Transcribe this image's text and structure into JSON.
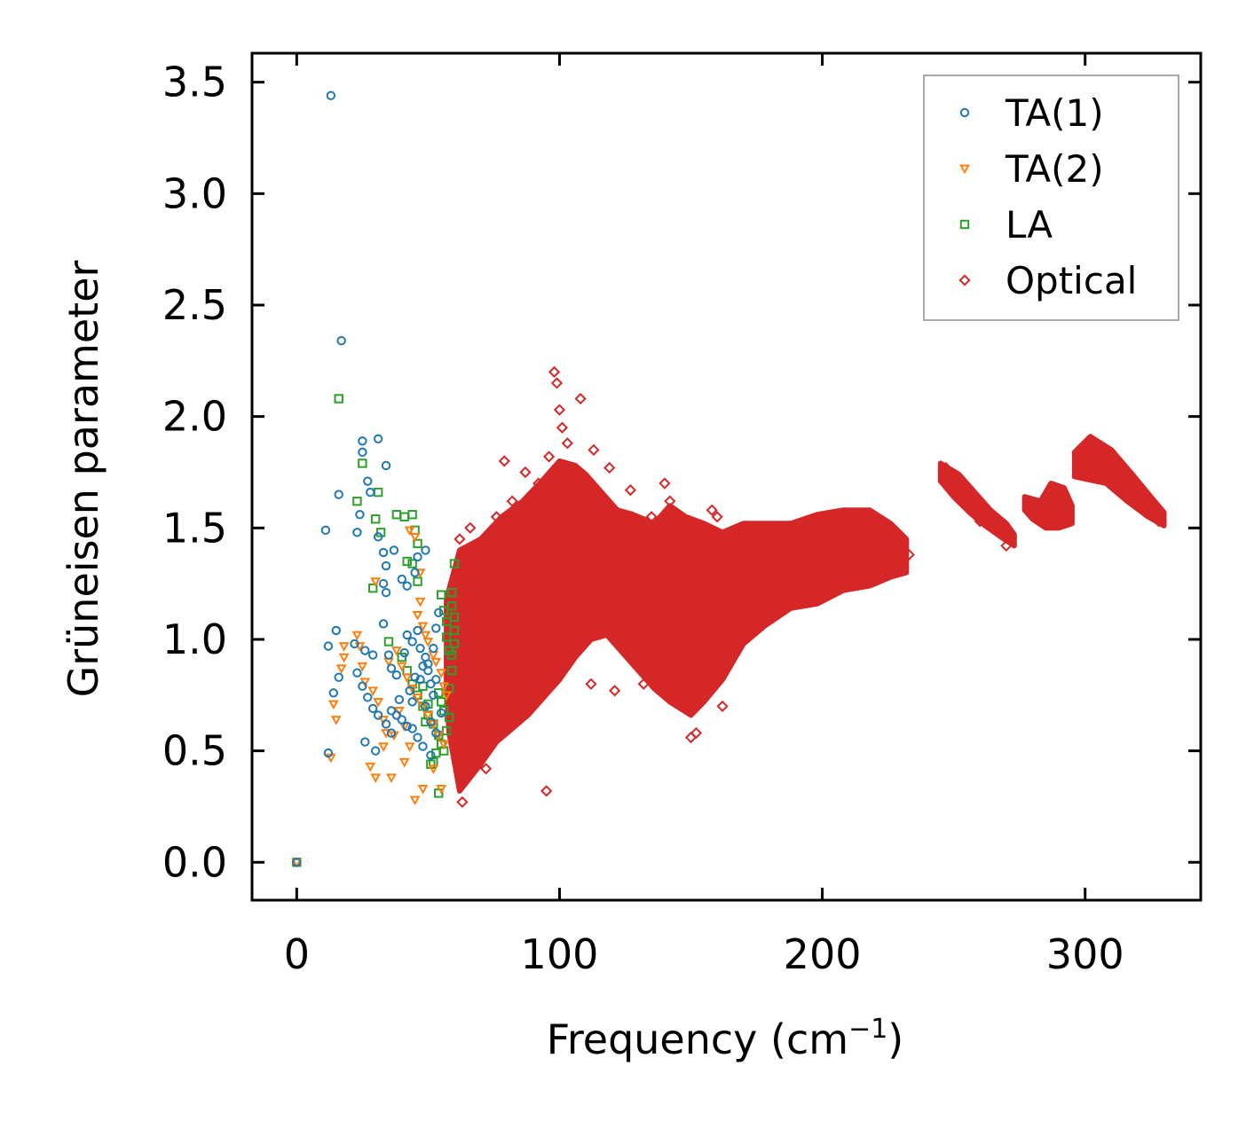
{
  "chart_data": {
    "type": "scatter",
    "title": "",
    "xlabel": "Frequency (cm",
    "xlabel_sup": "−1",
    "xlabel_close": ")",
    "ylabel": "Grüneisen parameter",
    "xlim": [
      -17,
      344
    ],
    "ylim": [
      -0.17,
      3.63
    ],
    "xticks": [
      0,
      100,
      200,
      300
    ],
    "xtick_labels": [
      "0",
      "100",
      "200",
      "300"
    ],
    "yticks": [
      0.0,
      0.5,
      1.0,
      1.5,
      2.0,
      2.5,
      3.0,
      3.5
    ],
    "ytick_labels": [
      "0.0",
      "0.5",
      "1.0",
      "1.5",
      "2.0",
      "2.5",
      "3.0",
      "3.5"
    ],
    "legend_position": "top-right",
    "series": [
      {
        "name": "TA(1)",
        "marker": "circle",
        "color": "#1f77b4",
        "points": [
          [
            0,
            0
          ],
          [
            13,
            3.44
          ],
          [
            17,
            2.34
          ],
          [
            16,
            1.65
          ],
          [
            11,
            1.49
          ],
          [
            25,
            1.89
          ],
          [
            31,
            1.9
          ],
          [
            25,
            1.84
          ],
          [
            34,
            1.78
          ],
          [
            27,
            1.71
          ],
          [
            28,
            1.66
          ],
          [
            24,
            1.56
          ],
          [
            23,
            1.48
          ],
          [
            31,
            1.46
          ],
          [
            33,
            1.39
          ],
          [
            37,
            1.4
          ],
          [
            34,
            1.33
          ],
          [
            40,
            1.27
          ],
          [
            42,
            1.24
          ],
          [
            45,
            1.3
          ],
          [
            46,
            1.37
          ],
          [
            49,
            1.4
          ],
          [
            33,
            1.25
          ],
          [
            34,
            1.21
          ],
          [
            15,
            1.04
          ],
          [
            12,
            0.97
          ],
          [
            22,
            0.98
          ],
          [
            26,
            0.95
          ],
          [
            29,
            0.93
          ],
          [
            33,
            1.07
          ],
          [
            35,
            0.93
          ],
          [
            36,
            0.87
          ],
          [
            38,
            0.84
          ],
          [
            41,
            0.94
          ],
          [
            42,
            1.02
          ],
          [
            44,
            0.99
          ],
          [
            46,
            1.04
          ],
          [
            47,
            0.96
          ],
          [
            49,
            0.92
          ],
          [
            50,
            0.86
          ],
          [
            51,
            0.8
          ],
          [
            52,
            0.75
          ],
          [
            53,
            0.82
          ],
          [
            16,
            0.83
          ],
          [
            14,
            0.76
          ],
          [
            23,
            0.85
          ],
          [
            25,
            0.79
          ],
          [
            27,
            0.74
          ],
          [
            29,
            0.69
          ],
          [
            31,
            0.66
          ],
          [
            34,
            0.62
          ],
          [
            36,
            0.58
          ],
          [
            38,
            0.66
          ],
          [
            40,
            0.64
          ],
          [
            42,
            0.61
          ],
          [
            44,
            0.6
          ],
          [
            46,
            0.56
          ],
          [
            48,
            0.52
          ],
          [
            51,
            0.48
          ],
          [
            26,
            0.54
          ],
          [
            30,
            0.5
          ],
          [
            12,
            0.49
          ],
          [
            36,
            0.68
          ],
          [
            39,
            0.73
          ],
          [
            43,
            0.77
          ],
          [
            47,
            0.82
          ],
          [
            50,
            0.89
          ],
          [
            52,
            0.96
          ],
          [
            53,
            1.05
          ],
          [
            54,
            1.12
          ],
          [
            55,
            0.67
          ],
          [
            45,
            0.83
          ],
          [
            48,
            0.88
          ],
          [
            44,
            0.72
          ],
          [
            49,
            0.7
          ],
          [
            51,
            0.63
          ],
          [
            53,
            0.58
          ]
        ]
      },
      {
        "name": "TA(2)",
        "marker": "triangle",
        "color": "#ff7f0e",
        "points": [
          [
            0,
            0
          ],
          [
            13,
            0.47
          ],
          [
            15,
            0.64
          ],
          [
            14,
            0.71
          ],
          [
            17,
            0.87
          ],
          [
            18,
            0.92
          ],
          [
            24,
            0.97
          ],
          [
            25,
            0.88
          ],
          [
            26,
            0.81
          ],
          [
            29,
            0.77
          ],
          [
            31,
            0.72
          ],
          [
            33,
            0.64
          ],
          [
            34,
            0.58
          ],
          [
            28,
            0.43
          ],
          [
            30,
            0.38
          ],
          [
            36,
            0.38
          ],
          [
            41,
            0.45
          ],
          [
            43,
            0.52
          ],
          [
            45,
            0.28
          ],
          [
            48,
            0.33
          ],
          [
            52,
            0.42
          ],
          [
            55,
            0.33
          ],
          [
            30,
            1.26
          ],
          [
            43,
            1.49
          ],
          [
            45,
            1.46
          ],
          [
            47,
            1.3
          ],
          [
            38,
            0.95
          ],
          [
            40,
            0.88
          ],
          [
            42,
            0.83
          ],
          [
            44,
            0.78
          ],
          [
            46,
            0.74
          ],
          [
            48,
            0.7
          ],
          [
            50,
            0.66
          ],
          [
            52,
            0.62
          ],
          [
            54,
            0.57
          ],
          [
            56,
            0.53
          ],
          [
            46,
            1.11
          ],
          [
            47,
            1.17
          ],
          [
            48,
            1.06
          ],
          [
            49,
            1.02
          ],
          [
            50,
            0.99
          ],
          [
            52,
            0.93
          ],
          [
            53,
            0.9
          ],
          [
            55,
            0.85
          ],
          [
            56,
            0.79
          ],
          [
            57,
            0.75
          ],
          [
            18,
            0.97
          ],
          [
            23,
            1.02
          ],
          [
            35,
            0.9
          ],
          [
            39,
            0.68
          ],
          [
            41,
            0.61
          ],
          [
            37,
            0.57
          ],
          [
            33,
            0.52
          ]
        ]
      },
      {
        "name": "LA",
        "marker": "square",
        "color": "#2ca02c",
        "points": [
          [
            0,
            0
          ],
          [
            16,
            2.08
          ],
          [
            25,
            1.79
          ],
          [
            23,
            1.62
          ],
          [
            31,
            1.66
          ],
          [
            30,
            1.54
          ],
          [
            32,
            1.48
          ],
          [
            38,
            1.56
          ],
          [
            41,
            1.55
          ],
          [
            44,
            1.56
          ],
          [
            45,
            1.49
          ],
          [
            46,
            1.43
          ],
          [
            42,
            1.35
          ],
          [
            44,
            1.34
          ],
          [
            46,
            1.26
          ],
          [
            29,
            1.23
          ],
          [
            35,
            0.99
          ],
          [
            40,
            0.92
          ],
          [
            42,
            0.86
          ],
          [
            44,
            0.8
          ],
          [
            46,
            0.75
          ],
          [
            48,
            0.7
          ],
          [
            50,
            0.66
          ],
          [
            52,
            0.62
          ],
          [
            54,
            0.57
          ],
          [
            55,
            0.53
          ],
          [
            52,
            0.45
          ],
          [
            54,
            0.31
          ],
          [
            56,
            0.5
          ],
          [
            57,
            0.59
          ],
          [
            58,
            0.65
          ],
          [
            58,
            0.78
          ],
          [
            59,
            0.86
          ],
          [
            59,
            0.93
          ],
          [
            60,
            0.98
          ],
          [
            60,
            1.04
          ],
          [
            60,
            1.1
          ],
          [
            59,
            1.15
          ],
          [
            59,
            1.21
          ],
          [
            60,
            1.34
          ],
          [
            55,
            1.2
          ],
          [
            56,
            1.13
          ],
          [
            57,
            1.08
          ],
          [
            57,
            1.01
          ],
          [
            58,
            0.95
          ],
          [
            51,
            0.44
          ],
          [
            53,
            0.49
          ],
          [
            49,
            0.63
          ],
          [
            50,
            0.71
          ],
          [
            55,
            0.72
          ],
          [
            56,
            0.68
          ],
          [
            54,
            0.76
          ],
          [
            48,
            0.79
          ]
        ]
      },
      {
        "name": "Optical",
        "marker": "diamond",
        "color": "#d62728",
        "points": [
          [
            60,
            0.55
          ],
          [
            60,
            1.2
          ],
          [
            62,
            1.45
          ],
          [
            63,
            0.27
          ],
          [
            63,
            0.8
          ],
          [
            65,
            0.39
          ],
          [
            66,
            1.5
          ],
          [
            68,
            0.48
          ],
          [
            68,
            1.24
          ],
          [
            70,
            0.63
          ],
          [
            72,
            0.42
          ],
          [
            72,
            1.4
          ],
          [
            75,
            0.77
          ],
          [
            76,
            1.55
          ],
          [
            79,
            1.8
          ],
          [
            79,
            1.05
          ],
          [
            80,
            0.82
          ],
          [
            82,
            1.62
          ],
          [
            84,
            1.5
          ],
          [
            86,
            0.7
          ],
          [
            87,
            1.75
          ],
          [
            90,
            0.95
          ],
          [
            92,
            1.7
          ],
          [
            95,
            0.32
          ],
          [
            96,
            1.82
          ],
          [
            98,
            2.2
          ],
          [
            99,
            2.15
          ],
          [
            100,
            2.03
          ],
          [
            101,
            1.95
          ],
          [
            103,
            1.88
          ],
          [
            105,
            0.94
          ],
          [
            106,
            1.72
          ],
          [
            108,
            2.08
          ],
          [
            110,
            1.6
          ],
          [
            112,
            0.8
          ],
          [
            113,
            1.85
          ],
          [
            115,
            1.58
          ],
          [
            118,
            1.33
          ],
          [
            119,
            1.77
          ],
          [
            121,
            0.77
          ],
          [
            124,
            1.5
          ],
          [
            127,
            1.67
          ],
          [
            130,
            1.4
          ],
          [
            132,
            0.8
          ],
          [
            135,
            1.55
          ],
          [
            138,
            1.08
          ],
          [
            140,
            1.7
          ],
          [
            142,
            1.62
          ],
          [
            145,
            0.74
          ],
          [
            148,
            1.53
          ],
          [
            150,
            0.56
          ],
          [
            152,
            0.58
          ],
          [
            155,
            0.9
          ],
          [
            158,
            1.58
          ],
          [
            160,
            1.55
          ],
          [
            162,
            0.7
          ],
          [
            165,
            1.22
          ],
          [
            168,
            1.48
          ],
          [
            170,
            1.18
          ],
          [
            172,
            1.45
          ],
          [
            175,
            1.28
          ],
          [
            178,
            1.32
          ],
          [
            180,
            1.2
          ],
          [
            183,
            1.32
          ],
          [
            186,
            1.36
          ],
          [
            188,
            1.4
          ],
          [
            190,
            1.2
          ],
          [
            193,
            1.4
          ],
          [
            196,
            1.52
          ],
          [
            198,
            1.34
          ],
          [
            200,
            1.48
          ],
          [
            203,
            1.4
          ],
          [
            206,
            1.52
          ],
          [
            210,
            1.36
          ],
          [
            214,
            1.46
          ],
          [
            218,
            1.42
          ],
          [
            222,
            1.48
          ],
          [
            226,
            1.4
          ],
          [
            230,
            1.4
          ],
          [
            233,
            1.38
          ],
          [
            247,
            1.77
          ],
          [
            252,
            1.69
          ],
          [
            256,
            1.6
          ],
          [
            260,
            1.53
          ],
          [
            265,
            1.5
          ],
          [
            270,
            1.42
          ],
          [
            280,
            1.58
          ],
          [
            286,
            1.6
          ],
          [
            290,
            1.52
          ],
          [
            300,
            1.8
          ],
          [
            305,
            1.85
          ],
          [
            310,
            1.77
          ],
          [
            315,
            1.67
          ],
          [
            320,
            1.62
          ],
          [
            325,
            1.57
          ],
          [
            328,
            1.53
          ]
        ]
      }
    ]
  }
}
